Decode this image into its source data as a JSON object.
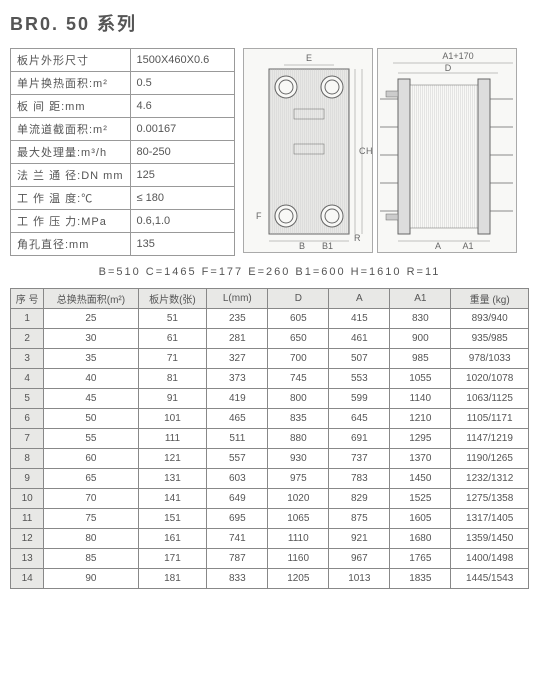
{
  "title": "BR0. 50 系列",
  "specs": [
    {
      "label": "板片外形尺寸",
      "value": "1500X460X0.6"
    },
    {
      "label": "单片换热面积:m²",
      "value": "0.5"
    },
    {
      "label": "板 间 距:mm",
      "value": "4.6"
    },
    {
      "label": "单流道截面积:m²",
      "value": "0.00167"
    },
    {
      "label": "最大处理量:m³/h",
      "value": "80-250"
    },
    {
      "label": "法 兰 通 径:DN mm",
      "value": "125"
    },
    {
      "label": "工 作 温 度:℃",
      "value": "≤ 180"
    },
    {
      "label": "工 作 压 力:MPa",
      "value": "0.6,1.0"
    },
    {
      "label": "角孔直径:mm",
      "value": "135"
    }
  ],
  "dim_line": "B=510   C=1465   F=177   E=260   B1=600   H=1610   R=11",
  "diagram_labels": {
    "A1_170": "A1+170",
    "D": "D",
    "E": "E",
    "B": "B",
    "B1": "B1",
    "R": "R",
    "F": "F",
    "C": "C",
    "H": "H",
    "A": "A",
    "A1": "A1"
  },
  "data_headers": [
    "序 号",
    "总换热面积(m²)",
    "板片数(张)",
    "L(mm)",
    "D",
    "A",
    "A1",
    "重量 (kg)"
  ],
  "data_rows": [
    [
      "1",
      "25",
      "51",
      "235",
      "605",
      "415",
      "830",
      "893/940"
    ],
    [
      "2",
      "30",
      "61",
      "281",
      "650",
      "461",
      "900",
      "935/985"
    ],
    [
      "3",
      "35",
      "71",
      "327",
      "700",
      "507",
      "985",
      "978/1033"
    ],
    [
      "4",
      "40",
      "81",
      "373",
      "745",
      "553",
      "1055",
      "1020/1078"
    ],
    [
      "5",
      "45",
      "91",
      "419",
      "800",
      "599",
      "1140",
      "1063/1125"
    ],
    [
      "6",
      "50",
      "101",
      "465",
      "835",
      "645",
      "1210",
      "1105/1171"
    ],
    [
      "7",
      "55",
      "111",
      "511",
      "880",
      "691",
      "1295",
      "1147/1219"
    ],
    [
      "8",
      "60",
      "121",
      "557",
      "930",
      "737",
      "1370",
      "1190/1265"
    ],
    [
      "9",
      "65",
      "131",
      "603",
      "975",
      "783",
      "1450",
      "1232/1312"
    ],
    [
      "10",
      "70",
      "141",
      "649",
      "1020",
      "829",
      "1525",
      "1275/1358"
    ],
    [
      "11",
      "75",
      "151",
      "695",
      "1065",
      "875",
      "1605",
      "1317/1405"
    ],
    [
      "12",
      "80",
      "161",
      "741",
      "1110",
      "921",
      "1680",
      "1359/1450"
    ],
    [
      "13",
      "85",
      "171",
      "787",
      "1160",
      "967",
      "1765",
      "1400/1498"
    ],
    [
      "14",
      "90",
      "181",
      "833",
      "1205",
      "1013",
      "1835",
      "1445/1543"
    ]
  ]
}
